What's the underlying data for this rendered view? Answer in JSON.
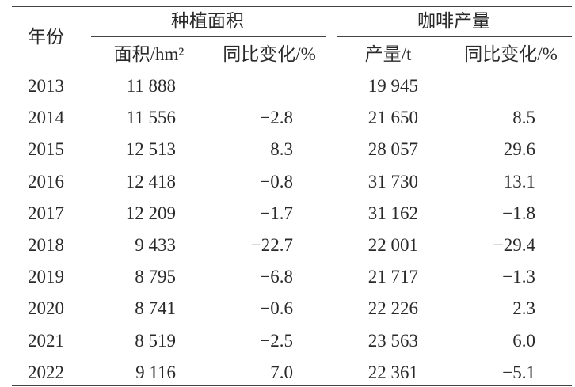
{
  "table": {
    "year_header": "年份",
    "groups": [
      {
        "title": "种植面积",
        "columns": [
          "面积/hm²",
          "同比变化/%"
        ]
      },
      {
        "title": "咖啡产量",
        "columns": [
          "产量/t",
          "同比变化/%"
        ]
      }
    ],
    "rows": [
      [
        "2013",
        "11 888",
        null,
        "19 945",
        null
      ],
      [
        "2014",
        "11 556",
        "−2.8",
        "21 650",
        "8.5"
      ],
      [
        "2015",
        "12 513",
        "8.3",
        "28 057",
        "29.6"
      ],
      [
        "2016",
        "12 418",
        "−0.8",
        "31 730",
        "13.1"
      ],
      [
        "2017",
        "12 209",
        "−1.7",
        "31 162",
        "−1.8"
      ],
      [
        "2018",
        "9 433",
        "−22.7",
        "22 001",
        "−29.4"
      ],
      [
        "2019",
        "8 795",
        "−6.8",
        "21 717",
        "−1.3"
      ],
      [
        "2020",
        "8 741",
        "−0.6",
        "22 226",
        "2.3"
      ],
      [
        "2021",
        "8 519",
        "−2.5",
        "23 563",
        "6.0"
      ],
      [
        "2022",
        "9 116",
        "7.0",
        "22 361",
        "−5.1"
      ]
    ]
  }
}
